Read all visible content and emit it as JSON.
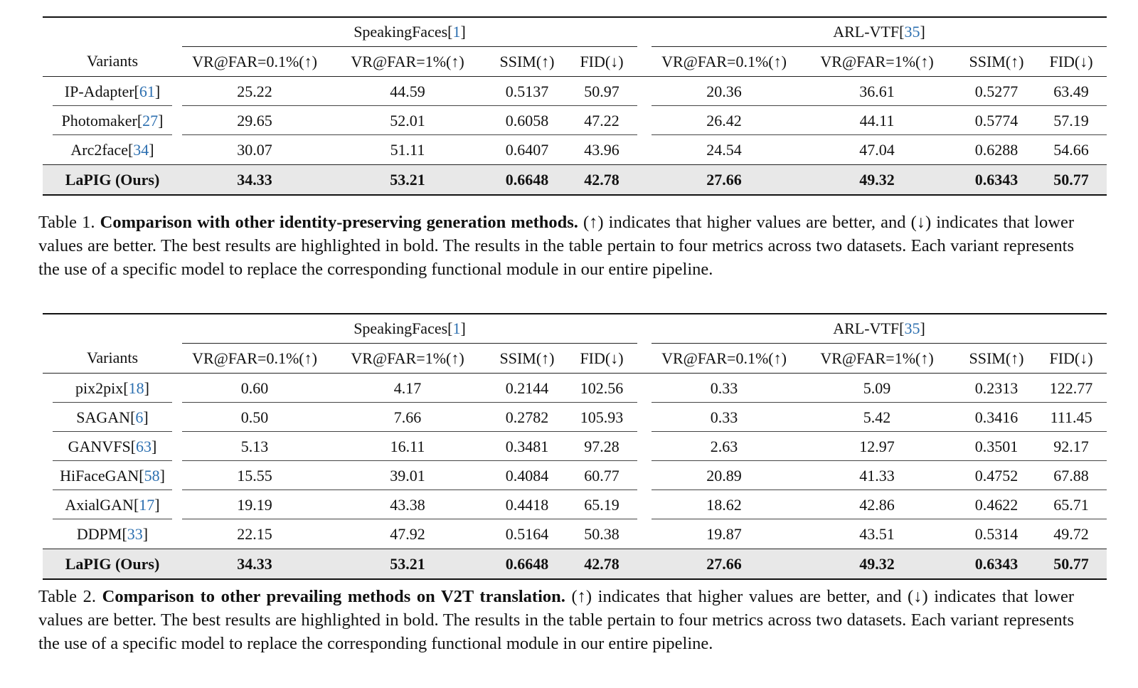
{
  "table1": {
    "datasets": [
      {
        "name": "SpeakingFaces",
        "ref": "1"
      },
      {
        "name": "ARL-VTF",
        "ref": "35"
      }
    ],
    "columns": [
      "VR@FAR=0.1%(↑)",
      "VR@FAR=1%(↑)",
      "SSIM(↑)",
      "FID(↓)"
    ],
    "variant_header": "Variants",
    "rows": [
      {
        "name": "IP-Adapter",
        "ref": "61",
        "sf": [
          "25.22",
          "44.59",
          "0.5137",
          "50.97"
        ],
        "arl": [
          "20.36",
          "36.61",
          "0.5277",
          "63.49"
        ]
      },
      {
        "name": "Photomaker",
        "ref": "27",
        "sf": [
          "29.65",
          "52.01",
          "0.6058",
          "47.22"
        ],
        "arl": [
          "26.42",
          "44.11",
          "0.5774",
          "57.19"
        ]
      },
      {
        "name": "Arc2face",
        "ref": "34",
        "sf": [
          "30.07",
          "51.11",
          "0.6407",
          "43.96"
        ],
        "arl": [
          "24.54",
          "47.04",
          "0.6288",
          "54.66"
        ]
      }
    ],
    "ours": {
      "name": "LaPIG (Ours)",
      "sf": [
        "34.33",
        "53.21",
        "0.6648",
        "42.78"
      ],
      "arl": [
        "27.66",
        "49.32",
        "0.6343",
        "50.77"
      ]
    },
    "caption": {
      "label": "Table 1.",
      "bold": "Comparison with other identity-preserving generation methods.",
      "text": "(↑) indicates that higher values are better, and (↓) indicates that lower values are better. The best results are highlighted in bold. The results in the table pertain to four metrics across two datasets. Each variant represents the use of a specific model to replace the corresponding functional module in our entire pipeline."
    }
  },
  "table2": {
    "datasets": [
      {
        "name": "SpeakingFaces",
        "ref": "1"
      },
      {
        "name": "ARL-VTF",
        "ref": "35"
      }
    ],
    "columns": [
      "VR@FAR=0.1%(↑)",
      "VR@FAR=1%(↑)",
      "SSIM(↑)",
      "FID(↓)"
    ],
    "variant_header": "Variants",
    "rows": [
      {
        "name": "pix2pix",
        "ref": "18",
        "sf": [
          "0.60",
          "4.17",
          "0.2144",
          "102.56"
        ],
        "arl": [
          "0.33",
          "5.09",
          "0.2313",
          "122.77"
        ]
      },
      {
        "name": "SAGAN",
        "ref": "6",
        "sf": [
          "0.50",
          "7.66",
          "0.2782",
          "105.93"
        ],
        "arl": [
          "0.33",
          "5.42",
          "0.3416",
          "111.45"
        ]
      },
      {
        "name": "GANVFS",
        "ref": "63",
        "sf": [
          "5.13",
          "16.11",
          "0.3481",
          "97.28"
        ],
        "arl": [
          "2.63",
          "12.97",
          "0.3501",
          "92.17"
        ]
      },
      {
        "name": "HiFaceGAN",
        "ref": "58",
        "sf": [
          "15.55",
          "39.01",
          "0.4084",
          "60.77"
        ],
        "arl": [
          "20.89",
          "41.33",
          "0.4752",
          "67.88"
        ]
      },
      {
        "name": "AxialGAN",
        "ref": "17",
        "sf": [
          "19.19",
          "43.38",
          "0.4418",
          "65.19"
        ],
        "arl": [
          "18.62",
          "42.86",
          "0.4622",
          "65.71"
        ]
      },
      {
        "name": "DDPM",
        "ref": "33",
        "sf": [
          "22.15",
          "47.92",
          "0.5164",
          "50.38"
        ],
        "arl": [
          "19.87",
          "43.51",
          "0.5314",
          "49.72"
        ]
      }
    ],
    "ours": {
      "name": "LaPIG (Ours)",
      "sf": [
        "34.33",
        "53.21",
        "0.6648",
        "42.78"
      ],
      "arl": [
        "27.66",
        "49.32",
        "0.6343",
        "50.77"
      ]
    },
    "caption": {
      "label": "Table 2.",
      "bold": "Comparison to other prevailing methods on V2T translation.",
      "text": "(↑) indicates that higher values are better, and (↓) indicates that lower values are better. The best results are highlighted in bold. The results in the table pertain to four metrics across two datasets. Each variant represents the use of a specific model to replace the corresponding functional module in our entire pipeline."
    }
  },
  "colors": {
    "reference_link": "#2c6fb0",
    "highlight_row": "#e8e8e8"
  }
}
